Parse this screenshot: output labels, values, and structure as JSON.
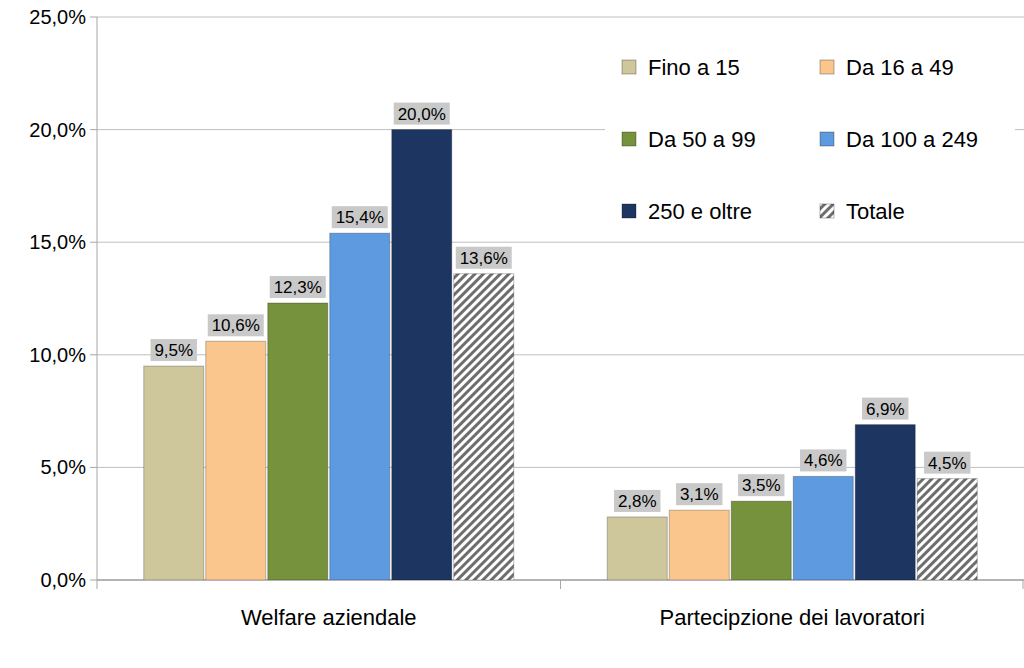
{
  "chart_data": {
    "type": "bar",
    "categories": [
      "Welfare aziendale",
      "Partecipzione dei lavoratori"
    ],
    "series": [
      {
        "name": "Fino a 15",
        "color": "#cfc79c",
        "values": [
          9.5,
          2.8
        ],
        "value_labels": [
          "9,5%",
          "2,8%"
        ]
      },
      {
        "name": "Da 16 a 49",
        "color": "#fbc68e",
        "values": [
          10.6,
          3.1
        ],
        "value_labels": [
          "10,6%",
          "3,1%"
        ]
      },
      {
        "name": "Da 50 a 99",
        "color": "#76923c",
        "values": [
          12.3,
          3.5
        ],
        "value_labels": [
          "12,3%",
          "3,5%"
        ]
      },
      {
        "name": "Da 100 a 249",
        "color": "#5d9ae0",
        "values": [
          15.4,
          4.6
        ],
        "value_labels": [
          "15,4%",
          "4,6%"
        ]
      },
      {
        "name": "250 e oltre",
        "color": "#1c3561",
        "values": [
          20.0,
          6.9
        ],
        "value_labels": [
          "20,0%",
          "6,9%"
        ]
      },
      {
        "name": "Totale",
        "color": "#6e6e6e",
        "marker": "hatch",
        "values": [
          13.6,
          4.5
        ],
        "value_labels": [
          "13,6%",
          "4,5%"
        ]
      }
    ],
    "ylim": [
      0,
      25
    ],
    "yticks": [
      {
        "value": 0,
        "label": "0,0%"
      },
      {
        "value": 5,
        "label": "5,0%"
      },
      {
        "value": 10,
        "label": "10,0%"
      },
      {
        "value": 15,
        "label": "15,0%"
      },
      {
        "value": 20,
        "label": "20,0%"
      },
      {
        "value": 25,
        "label": "25,0%"
      }
    ],
    "grid": true,
    "legend": "top-right",
    "data_labels": true
  }
}
